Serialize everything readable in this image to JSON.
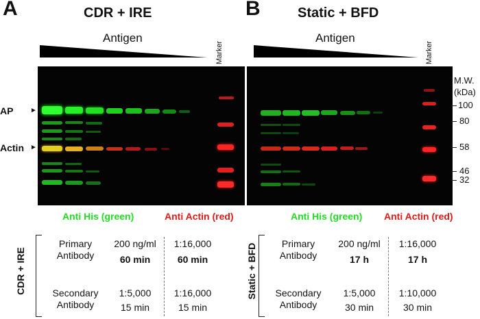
{
  "panels": {
    "a": {
      "letter": "A",
      "title": "CDR + IRE",
      "antigen": "Antigen",
      "marker": "Marker",
      "anti_his": "Anti His (green)",
      "anti_actin": "Anti Actin (red)"
    },
    "b": {
      "letter": "B",
      "title": "Static + BFD",
      "antigen": "Antigen",
      "marker": "Marker",
      "anti_his": "Anti His (green)",
      "anti_actin": "Anti Actin (red)"
    }
  },
  "side_labels": {
    "ap": "AP",
    "actin": "Actin"
  },
  "mw": {
    "title1": "M.W.",
    "title2": "(kDa)",
    "ticks": [
      "100",
      "80",
      "58",
      "46",
      "32"
    ]
  },
  "tables": {
    "a": {
      "vertical_label": "CDR + IRE",
      "primary_label1": "Primary",
      "primary_label2": "Antibody",
      "primary_his_conc": "200 ng/ml",
      "primary_his_time": "60 min",
      "primary_actin_conc": "1:16,000",
      "primary_actin_time": "60 min",
      "secondary_label1": "Secondary",
      "secondary_label2": "Antibody",
      "secondary_his_conc": "1:5,000",
      "secondary_his_time": "15 min",
      "secondary_actin_conc": "1:16,000",
      "secondary_actin_time": "15 min"
    },
    "b": {
      "vertical_label": "Static + BFD",
      "primary_label1": "Primary",
      "primary_label2": "Antibody",
      "primary_his_conc": "200 ng/ml",
      "primary_his_time": "17 h",
      "primary_actin_conc": "1:16,000",
      "primary_actin_time": "17 h",
      "secondary_label1": "Secondary",
      "secondary_label2": "Antibody",
      "secondary_his_conc": "1:5,000",
      "secondary_his_time": "30 min",
      "secondary_actin_conc": "1:10,000",
      "secondary_actin_time": "30 min"
    }
  },
  "colors": {
    "green": "#22dd22",
    "red": "#e01818",
    "blot": "#040404"
  }
}
